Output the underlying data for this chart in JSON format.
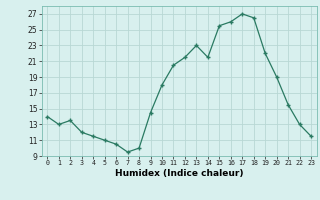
{
  "x": [
    0,
    1,
    2,
    3,
    4,
    5,
    6,
    7,
    8,
    9,
    10,
    11,
    12,
    13,
    14,
    15,
    16,
    17,
    18,
    19,
    20,
    21,
    22,
    23
  ],
  "y": [
    14,
    13,
    13.5,
    12,
    11.5,
    11,
    10.5,
    9.5,
    10,
    14.5,
    18,
    20.5,
    21.5,
    23,
    21.5,
    25.5,
    26,
    27,
    26.5,
    22,
    19,
    15.5,
    13,
    11.5
  ],
  "line_color": "#2a7a62",
  "marker_color": "#2a7a62",
  "bg_color": "#d8f0ee",
  "grid_color": "#b8d8d4",
  "xlabel": "Humidex (Indice chaleur)",
  "ylim": [
    9,
    28
  ],
  "xlim": [
    -0.5,
    23.5
  ],
  "yticks": [
    9,
    11,
    13,
    15,
    17,
    19,
    21,
    23,
    25,
    27
  ],
  "xtick_labels": [
    "0",
    "1",
    "2",
    "3",
    "4",
    "5",
    "6",
    "7",
    "8",
    "9",
    "10",
    "11",
    "12",
    "13",
    "14",
    "15",
    "16",
    "17",
    "18",
    "19",
    "20",
    "21",
    "22",
    "23"
  ]
}
